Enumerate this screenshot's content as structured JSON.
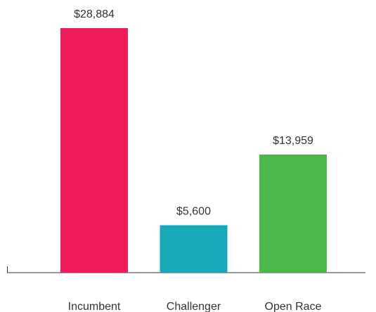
{
  "chart_data": {
    "type": "bar",
    "categories": [
      "Incumbent",
      "Challenger",
      "Open Race"
    ],
    "values": [
      28884,
      5600,
      13959
    ],
    "value_labels": [
      "$28,884",
      "$5,600",
      "$13,959"
    ],
    "colors": [
      "#ef1c5c",
      "#17a9b8",
      "#4db84a"
    ]
  }
}
